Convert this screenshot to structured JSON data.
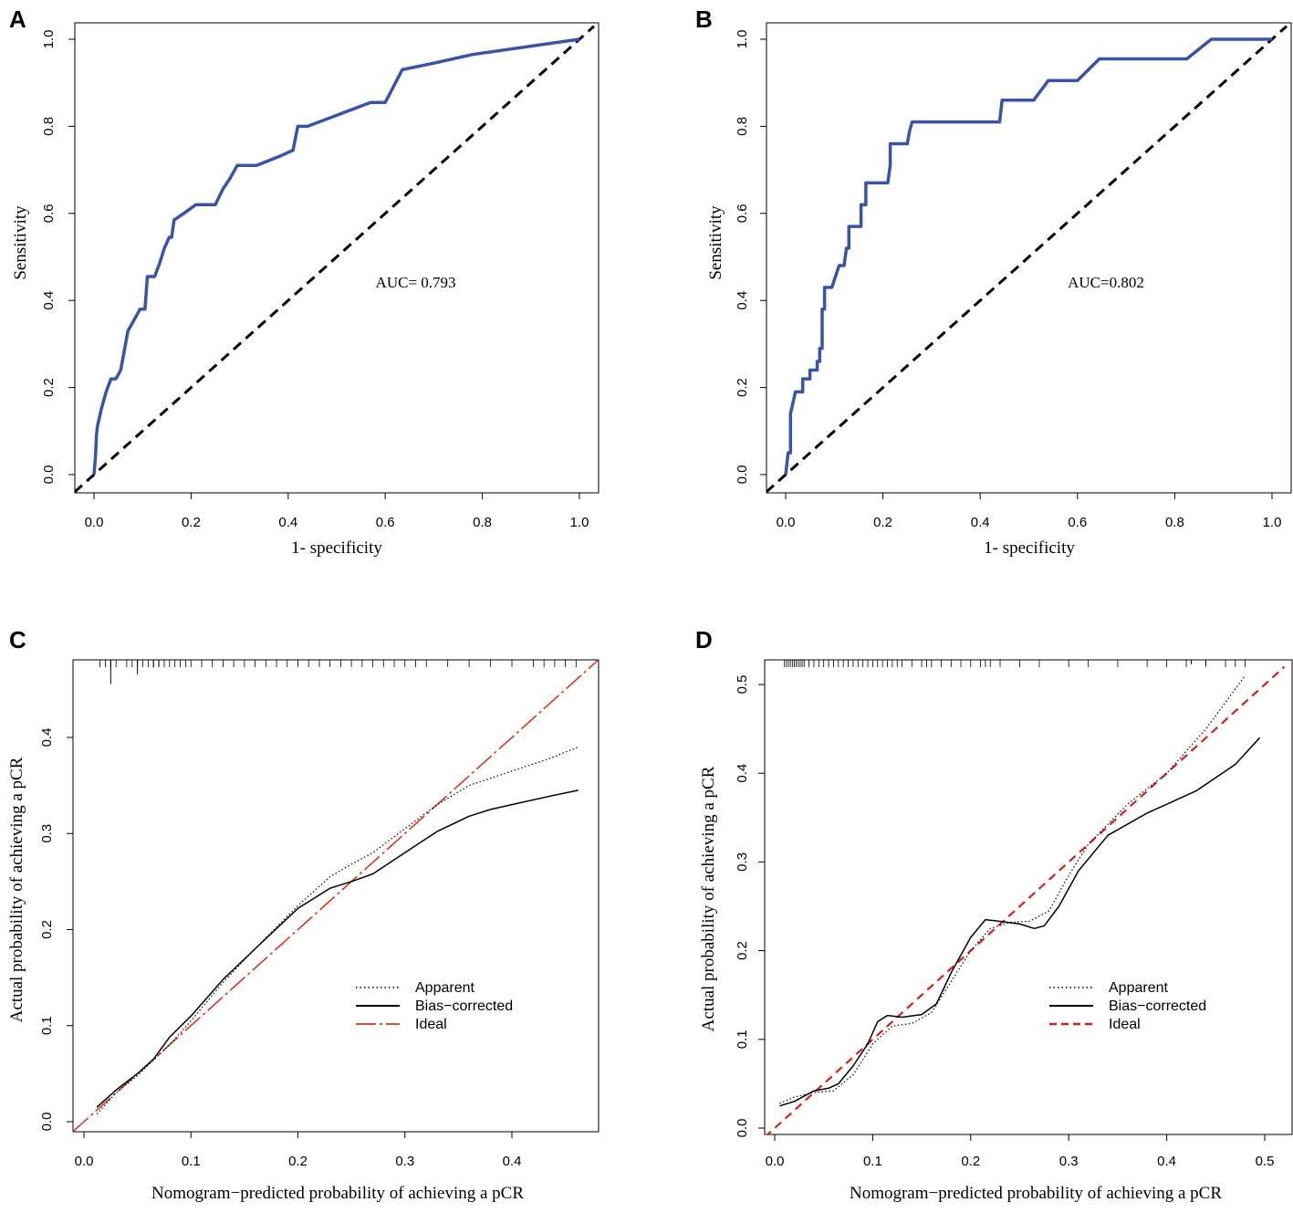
{
  "chart_data": [
    {
      "panel": "A",
      "type": "line",
      "xlabel": "1- specificity",
      "ylabel": "Sensitivity",
      "xlim": [
        0,
        1
      ],
      "ylim": [
        0,
        1
      ],
      "xticks": [
        "0.0",
        "0.2",
        "0.4",
        "0.6",
        "0.8",
        "1.0"
      ],
      "yticks": [
        "0.0",
        "0.2",
        "0.4",
        "0.6",
        "0.8",
        "1.0"
      ],
      "annotation": {
        "text": "AUC= 0.793",
        "x": 0.58,
        "y": 0.43
      },
      "colors": {
        "roc": "#3a53a4",
        "reference": "#000000"
      },
      "series": [
        {
          "name": "ROC",
          "x": [
            0,
            0.003,
            0.005,
            0.007,
            0.015,
            0.025,
            0.035,
            0.045,
            0.055,
            0.07,
            0.085,
            0.095,
            0.105,
            0.11,
            0.125,
            0.135,
            0.145,
            0.155,
            0.16,
            0.165,
            0.185,
            0.21,
            0.25,
            0.265,
            0.28,
            0.295,
            0.335,
            0.38,
            0.41,
            0.42,
            0.44,
            0.57,
            0.6,
            0.635,
            0.7,
            0.78,
            1.0
          ],
          "y": [
            0,
            0.04,
            0.09,
            0.11,
            0.15,
            0.19,
            0.22,
            0.22,
            0.24,
            0.33,
            0.36,
            0.38,
            0.38,
            0.455,
            0.455,
            0.485,
            0.52,
            0.545,
            0.545,
            0.585,
            0.6,
            0.62,
            0.62,
            0.655,
            0.68,
            0.71,
            0.71,
            0.73,
            0.745,
            0.8,
            0.8,
            0.855,
            0.855,
            0.93,
            0.945,
            0.965,
            1.0
          ]
        },
        {
          "name": "Reference",
          "x": [
            -0.04,
            1.03
          ],
          "y": [
            -0.04,
            1.03
          ]
        }
      ]
    },
    {
      "panel": "B",
      "type": "line",
      "xlabel": "1- specificity",
      "ylabel": "Sensitivity",
      "xlim": [
        0,
        1
      ],
      "ylim": [
        0,
        1
      ],
      "xticks": [
        "0.0",
        "0.2",
        "0.4",
        "0.6",
        "0.8",
        "1.0"
      ],
      "yticks": [
        "0.0",
        "0.2",
        "0.4",
        "0.6",
        "0.8",
        "1.0"
      ],
      "annotation": {
        "text": "AUC=0.802",
        "x": 0.58,
        "y": 0.43
      },
      "colors": {
        "roc": "#3a53a4",
        "reference": "#000000"
      },
      "series": [
        {
          "name": "ROC",
          "x": [
            0,
            0.005,
            0.01,
            0.01,
            0.02,
            0.02,
            0.035,
            0.035,
            0.05,
            0.05,
            0.065,
            0.065,
            0.07,
            0.07,
            0.075,
            0.075,
            0.08,
            0.08,
            0.095,
            0.095,
            0.11,
            0.115,
            0.12,
            0.125,
            0.13,
            0.13,
            0.135,
            0.135,
            0.155,
            0.155,
            0.165,
            0.165,
            0.2,
            0.21,
            0.215,
            0.215,
            0.225,
            0.25,
            0.255,
            0.26,
            0.43,
            0.44,
            0.445,
            0.51,
            0.52,
            0.54,
            0.6,
            0.645,
            0.825,
            0.875,
            1.0
          ],
          "y": [
            0,
            0.05,
            0.05,
            0.14,
            0.19,
            0.19,
            0.19,
            0.22,
            0.22,
            0.24,
            0.24,
            0.26,
            0.26,
            0.29,
            0.29,
            0.38,
            0.38,
            0.43,
            0.43,
            0.43,
            0.48,
            0.48,
            0.48,
            0.52,
            0.52,
            0.57,
            0.57,
            0.57,
            0.57,
            0.62,
            0.62,
            0.67,
            0.67,
            0.67,
            0.71,
            0.76,
            0.76,
            0.76,
            0.79,
            0.81,
            0.81,
            0.81,
            0.86,
            0.86,
            0.875,
            0.905,
            0.905,
            0.955,
            0.955,
            1.0,
            1.0
          ]
        },
        {
          "name": "Reference",
          "x": [
            -0.04,
            1.03
          ],
          "y": [
            -0.04,
            1.03
          ]
        }
      ]
    },
    {
      "panel": "C",
      "type": "line",
      "xlabel": "Nomogram−predicted probability of achieving a pCR",
      "ylabel": "Actual probability of achieving a pCR",
      "xlim": [
        -0.01,
        0.48
      ],
      "ylim": [
        -0.01,
        0.48
      ],
      "xticks": [
        "0.0",
        "0.1",
        "0.2",
        "0.3",
        "0.4"
      ],
      "yticks": [
        "0.0",
        "0.1",
        "0.2",
        "0.3",
        "0.4"
      ],
      "legend": {
        "placement": "bottom-right",
        "entries": [
          "Apparent",
          "Bias−corrected",
          "Ideal"
        ]
      },
      "colors": {
        "apparent": "#000000",
        "bias_corrected": "#000000",
        "ideal": "#d9351d"
      },
      "series": [
        {
          "name": "Apparent",
          "x": [
            0.012,
            0.03,
            0.05,
            0.08,
            0.1,
            0.13,
            0.16,
            0.2,
            0.23,
            0.25,
            0.27,
            0.3,
            0.33,
            0.36,
            0.4,
            0.435,
            0.462
          ],
          "y": [
            0.008,
            0.03,
            0.048,
            0.08,
            0.105,
            0.145,
            0.18,
            0.225,
            0.255,
            0.268,
            0.28,
            0.305,
            0.33,
            0.35,
            0.365,
            0.378,
            0.39
          ]
        },
        {
          "name": "Bias−corrected",
          "x": [
            0.012,
            0.03,
            0.05,
            0.065,
            0.08,
            0.1,
            0.13,
            0.16,
            0.2,
            0.23,
            0.25,
            0.27,
            0.3,
            0.33,
            0.36,
            0.38,
            0.42,
            0.44,
            0.462
          ],
          "y": [
            0.015,
            0.033,
            0.05,
            0.065,
            0.088,
            0.11,
            0.148,
            0.18,
            0.222,
            0.243,
            0.25,
            0.258,
            0.28,
            0.302,
            0.318,
            0.325,
            0.335,
            0.34,
            0.345
          ]
        },
        {
          "name": "Ideal",
          "x": [
            -0.01,
            0.48
          ],
          "y": [
            -0.01,
            0.48
          ]
        }
      ],
      "rug": [
        0.015,
        0.02,
        0.025,
        0.025,
        0.03,
        0.04,
        0.045,
        0.05,
        0.05,
        0.055,
        0.06,
        0.065,
        0.07,
        0.07,
        0.075,
        0.08,
        0.085,
        0.09,
        0.095,
        0.1,
        0.11,
        0.12,
        0.13,
        0.14,
        0.15,
        0.16,
        0.17,
        0.18,
        0.19,
        0.2,
        0.21,
        0.22,
        0.23,
        0.24,
        0.25,
        0.26,
        0.27,
        0.28,
        0.29,
        0.3,
        0.31,
        0.32,
        0.34,
        0.36,
        0.38,
        0.4,
        0.42,
        0.43,
        0.44,
        0.45,
        0.46
      ],
      "rug_long": [
        {
          "x": 0.025,
          "len": 0.025
        },
        {
          "x": 0.05,
          "len": 0.015
        },
        {
          "x": 0.065,
          "len": 0.008
        },
        {
          "x": 0.07,
          "len": 0.006
        }
      ]
    },
    {
      "panel": "D",
      "type": "line",
      "xlabel": "Nomogram−predicted probability of achieving a pCR",
      "ylabel": "Actual probability of achieving a pCR",
      "xlim": [
        -0.01,
        0.52
      ],
      "ylim": [
        -0.01,
        0.525
      ],
      "xticks": [
        "0.0",
        "0.1",
        "0.2",
        "0.3",
        "0.4",
        "0.5"
      ],
      "yticks": [
        "0.0",
        "0.1",
        "0.2",
        "0.3",
        "0.4",
        "0.5"
      ],
      "legend": {
        "placement": "bottom-right",
        "entries": [
          "Apparent",
          "Bias−corrected",
          "Ideal"
        ]
      },
      "colors": {
        "apparent": "#000000",
        "bias_corrected": "#000000",
        "ideal": "#d42020"
      },
      "series": [
        {
          "name": "Apparent",
          "x": [
            0.005,
            0.02,
            0.04,
            0.06,
            0.08,
            0.1,
            0.12,
            0.14,
            0.16,
            0.18,
            0.2,
            0.22,
            0.24,
            0.26,
            0.28,
            0.3,
            0.32,
            0.36,
            0.4,
            0.44,
            0.48
          ],
          "y": [
            0.028,
            0.035,
            0.04,
            0.042,
            0.06,
            0.095,
            0.115,
            0.118,
            0.13,
            0.165,
            0.2,
            0.225,
            0.232,
            0.233,
            0.245,
            0.285,
            0.32,
            0.365,
            0.4,
            0.45,
            0.51
          ]
        },
        {
          "name": "Bias−corrected",
          "x": [
            0.005,
            0.02,
            0.04,
            0.055,
            0.065,
            0.08,
            0.095,
            0.105,
            0.115,
            0.13,
            0.15,
            0.165,
            0.18,
            0.2,
            0.215,
            0.23,
            0.25,
            0.265,
            0.275,
            0.29,
            0.31,
            0.34,
            0.38,
            0.43,
            0.47,
            0.495
          ],
          "y": [
            0.025,
            0.03,
            0.042,
            0.045,
            0.05,
            0.07,
            0.095,
            0.12,
            0.127,
            0.125,
            0.128,
            0.14,
            0.175,
            0.215,
            0.235,
            0.233,
            0.23,
            0.225,
            0.228,
            0.25,
            0.29,
            0.33,
            0.355,
            0.38,
            0.41,
            0.44
          ]
        },
        {
          "name": "Ideal",
          "x": [
            -0.01,
            0.52
          ],
          "y": [
            -0.01,
            0.52
          ]
        }
      ],
      "rug": [
        0.01,
        0.012,
        0.014,
        0.016,
        0.018,
        0.02,
        0.022,
        0.024,
        0.026,
        0.028,
        0.03,
        0.035,
        0.04,
        0.045,
        0.05,
        0.055,
        0.06,
        0.065,
        0.07,
        0.075,
        0.08,
        0.085,
        0.09,
        0.095,
        0.1,
        0.105,
        0.11,
        0.115,
        0.12,
        0.125,
        0.13,
        0.14,
        0.15,
        0.155,
        0.16,
        0.17,
        0.18,
        0.19,
        0.2,
        0.21,
        0.215,
        0.22,
        0.23,
        0.25,
        0.27,
        0.3,
        0.32,
        0.35,
        0.38,
        0.4,
        0.42,
        0.44,
        0.46,
        0.47,
        0.48
      ],
      "rug_long": [
        {
          "x": 0.425,
          "len": 0.005
        },
        {
          "x": 0.44,
          "len": 0.005
        }
      ]
    }
  ]
}
